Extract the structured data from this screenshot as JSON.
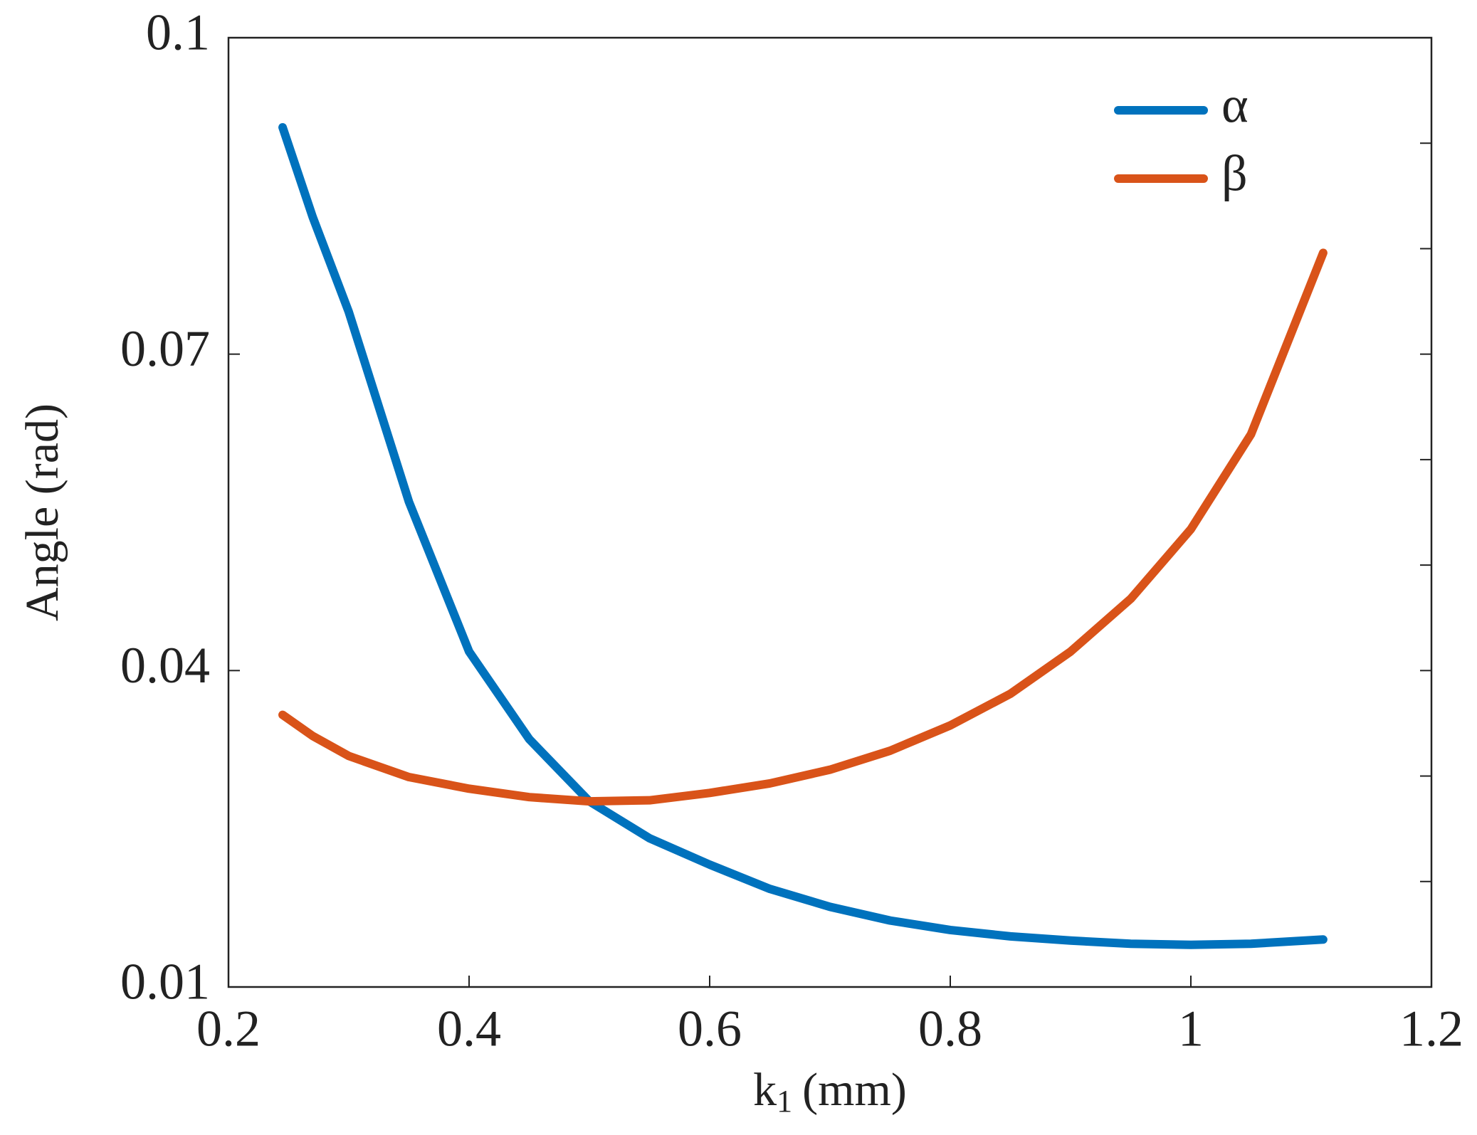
{
  "chart_data": {
    "type": "line",
    "x_label": {
      "symbol": "k",
      "subscript": "1",
      "unit": "(mm)"
    },
    "y_label": "Angle (rad)",
    "x": [
      0.245,
      0.27,
      0.3,
      0.35,
      0.4,
      0.45,
      0.5,
      0.55,
      0.6,
      0.65,
      0.7,
      0.75,
      0.8,
      0.85,
      0.9,
      0.95,
      1.0,
      1.05,
      1.11
    ],
    "series": [
      {
        "name": "α",
        "color": "#0072BD",
        "values": [
          0.0915,
          0.083,
          0.074,
          0.056,
          0.0418,
          0.0335,
          0.0276,
          0.0241,
          0.0216,
          0.0193,
          0.0176,
          0.0163,
          0.0154,
          0.0148,
          0.0144,
          0.0141,
          0.014,
          0.0141,
          0.0145
        ]
      },
      {
        "name": "β",
        "color": "#D95319",
        "values": [
          0.0358,
          0.0338,
          0.0319,
          0.0299,
          0.0288,
          0.028,
          0.0276,
          0.0277,
          0.0284,
          0.0293,
          0.0306,
          0.0324,
          0.0348,
          0.0378,
          0.0418,
          0.0468,
          0.0534,
          0.0624,
          0.0796
        ]
      }
    ],
    "xlim": [
      0.2,
      1.2
    ],
    "xticks": [
      0.2,
      0.4,
      0.6,
      0.8,
      1,
      1.2
    ],
    "ylim": [
      0.01,
      0.1
    ],
    "yticks": [
      0.01,
      0.04,
      0.07,
      0.1
    ],
    "minor_yticks": [
      0.02,
      0.03,
      0.05,
      0.06,
      0.08,
      0.09
    ],
    "legend": "upper right"
  }
}
